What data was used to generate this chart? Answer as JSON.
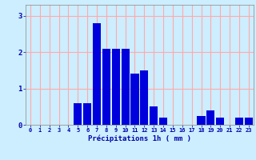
{
  "values": [
    0,
    0,
    0,
    0,
    0,
    0.6,
    0.6,
    2.8,
    2.1,
    2.1,
    2.1,
    1.4,
    1.5,
    0.5,
    0.2,
    0,
    0,
    0,
    0.25,
    0.4,
    0.2,
    0,
    0.2,
    0.2
  ],
  "xlabel": "Précipitations 1h ( mm )",
  "ylim": [
    0,
    3.3
  ],
  "xlim": [
    -0.5,
    23.5
  ],
  "bar_color": "#0000dd",
  "bg_color": "#cceeff",
  "grid_color": "#ffaaaa",
  "tick_color": "#0000aa",
  "label_color": "#0000aa",
  "yticks": [
    0,
    1,
    2,
    3
  ],
  "xticks": [
    0,
    1,
    2,
    3,
    4,
    5,
    6,
    7,
    8,
    9,
    10,
    11,
    12,
    13,
    14,
    15,
    16,
    17,
    18,
    19,
    20,
    21,
    22,
    23
  ]
}
